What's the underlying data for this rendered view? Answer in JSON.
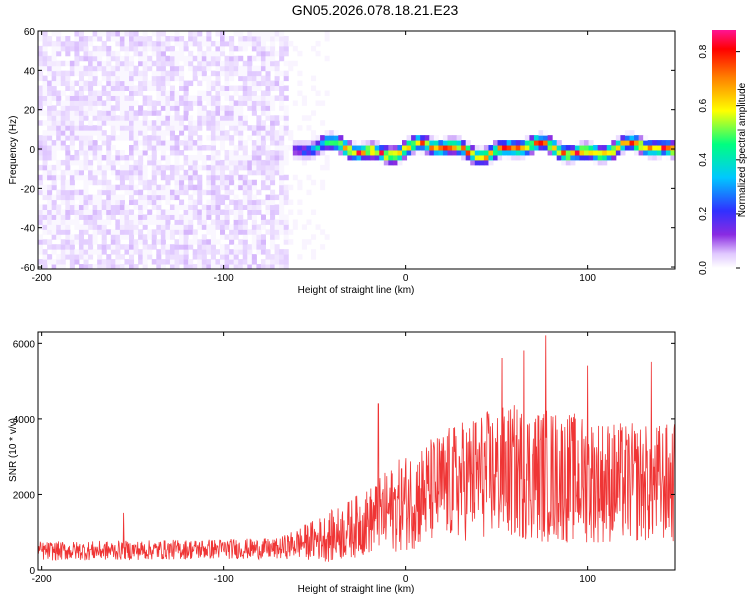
{
  "figure": {
    "title": "GN05.2026.078.18.21.E23"
  },
  "chart_data": [
    {
      "type": "heatmap",
      "title": "GN05.2026.078.18.21.E23",
      "xlabel": "Height of straight line (km)",
      "ylabel": "Frequency (Hz)",
      "xlim": [
        -202,
        148
      ],
      "ylim": [
        -61,
        60
      ],
      "x_ticks": [
        -200,
        -100,
        0,
        100
      ],
      "y_ticks": [
        -60,
        -40,
        -20,
        0,
        20,
        40,
        60
      ],
      "colorbar": {
        "label": "Normalized spectral amplitude",
        "range": [
          0.0,
          0.88
        ],
        "ticks": [
          0.0,
          0.2,
          0.4,
          0.6,
          0.8
        ],
        "colormap": [
          "#ffffff",
          "#e0c8ff",
          "#8a2be2",
          "#3030ff",
          "#00c8ff",
          "#00ff80",
          "#ffff00",
          "#ff8000",
          "#ff0000",
          "#ff1493"
        ]
      },
      "features": {
        "noise_region_x": [
          -202,
          -65
        ],
        "noise_amplitude": 0.05,
        "signal_start_x": -62,
        "signal_center_freq_hz": 0,
        "signal_band_width_hz": 10,
        "signal_peak_amplitude": 0.85
      },
      "grid": false
    },
    {
      "type": "line",
      "xlabel": "Height of straight line (km)",
      "ylabel": "SNR (10 * v/v)",
      "xlim": [
        -202,
        148
      ],
      "ylim": [
        0,
        6300
      ],
      "x_ticks": [
        -200,
        -100,
        0,
        100
      ],
      "y_ticks": [
        0,
        2000,
        4000,
        6000
      ],
      "series": [
        {
          "color": "#ef3535",
          "envelope": {
            "x": [
              -202,
              -150,
              -100,
              -70,
              -60,
              -40,
              -20,
              0,
              20,
              40,
              60,
              80,
              100,
              120,
              148
            ],
            "mean": [
              500,
              520,
              560,
              560,
              700,
              900,
              1300,
              1800,
              2200,
              2500,
              2600,
              2500,
              2400,
              2300,
              2300
            ],
            "spread": [
              250,
              260,
              270,
              280,
              400,
              700,
              900,
              1300,
              1500,
              1700,
              1800,
              1800,
              1700,
              1600,
              1600
            ]
          },
          "peaks": [
            {
              "x": 77,
              "y": 6200
            },
            {
              "x": 65,
              "y": 5800
            },
            {
              "x": 53,
              "y": 5600
            },
            {
              "x": 135,
              "y": 5500
            },
            {
              "x": 100,
              "y": 5400
            },
            {
              "x": -15,
              "y": 4400
            },
            {
              "x": -155,
              "y": 1500
            }
          ]
        }
      ],
      "grid": false
    }
  ]
}
